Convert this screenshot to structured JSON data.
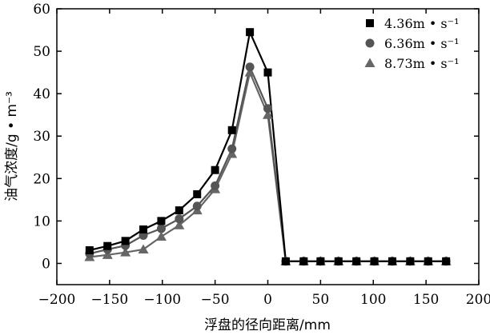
{
  "chart_data": {
    "type": "line",
    "title": "",
    "xlabel": "浮盘的径向距离/mm",
    "ylabel": "油气浓度/g • m⁻³",
    "xlim": [
      -200,
      200
    ],
    "ylim": [
      -5,
      60
    ],
    "xticks": [
      -200,
      -150,
      -100,
      -50,
      0,
      50,
      100,
      150,
      200
    ],
    "yticks": [
      0,
      10,
      20,
      30,
      40,
      50,
      60
    ],
    "xtick_labels": [
      "−200",
      "−150",
      "−100",
      "−50",
      "0",
      "50",
      "100",
      "150",
      "200"
    ],
    "ytick_labels": [
      "0",
      "10",
      "20",
      "30",
      "40",
      "50",
      "60"
    ],
    "grid": false,
    "legend_position": "top-right",
    "series": [
      {
        "name": "4.36m • s⁻¹",
        "marker": "square",
        "color": "#000000",
        "x": [
          -169,
          -152,
          -135,
          -118,
          -101,
          -84,
          -67,
          -50,
          -34,
          -17,
          0,
          17,
          34,
          50,
          67,
          84,
          101,
          118,
          135,
          152,
          169
        ],
        "y": [
          3.1,
          4.1,
          5.3,
          8.0,
          10.0,
          12.5,
          16.3,
          22.0,
          31.4,
          54.5,
          45.0,
          0.5,
          0.5,
          0.5,
          0.5,
          0.5,
          0.5,
          0.5,
          0.5,
          0.5,
          0.5
        ]
      },
      {
        "name": "6.36m • s⁻¹",
        "marker": "circle",
        "color": "#555555",
        "x": [
          -169,
          -152,
          -135,
          -118,
          -101,
          -84,
          -67,
          -50,
          -34,
          -17,
          0,
          17,
          34,
          50,
          67,
          84,
          101,
          118,
          135,
          152,
          169
        ],
        "y": [
          2.3,
          3.3,
          4.2,
          6.6,
          8.2,
          10.5,
          13.5,
          18.3,
          27.0,
          46.3,
          36.5,
          0.5,
          0.5,
          0.5,
          0.5,
          0.5,
          0.5,
          0.5,
          0.5,
          0.5,
          0.5
        ]
      },
      {
        "name": "8.73m • s⁻¹",
        "marker": "triangle",
        "color": "#666666",
        "x": [
          -169,
          -152,
          -135,
          -118,
          -101,
          -84,
          -67,
          -50,
          -34,
          -17,
          0,
          17,
          34,
          50,
          67,
          84,
          101,
          118,
          135,
          152,
          169
        ],
        "y": [
          1.5,
          2.0,
          2.6,
          3.3,
          6.3,
          9.0,
          12.5,
          17.5,
          25.8,
          45.0,
          35.0,
          0.5,
          0.5,
          0.5,
          0.5,
          0.5,
          0.5,
          0.5,
          0.5,
          0.5,
          0.5
        ]
      }
    ]
  }
}
